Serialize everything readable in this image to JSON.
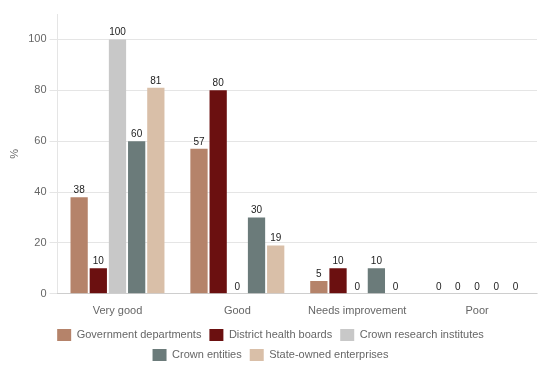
{
  "chart_data": {
    "type": "bar",
    "categories": [
      "Very good",
      "Good",
      "Needs improvement",
      "Poor"
    ],
    "series": [
      {
        "name": "Government departments",
        "color": "#b5836a",
        "values": [
          38,
          57,
          5,
          0
        ]
      },
      {
        "name": "District health boards",
        "color": "#6b1010",
        "values": [
          10,
          80,
          10,
          0
        ]
      },
      {
        "name": "Crown research institutes",
        "color": "#c8c8c8",
        "values": [
          100,
          0,
          0,
          0
        ]
      },
      {
        "name": "Crown entities",
        "color": "#6b7b7a",
        "values": [
          60,
          30,
          10,
          0
        ]
      },
      {
        "name": "State-owned enterprises",
        "color": "#d9bfa8",
        "values": [
          81,
          19,
          0,
          0
        ]
      }
    ],
    "ylabel": "%",
    "ylim": [
      0,
      110
    ],
    "yticks": [
      0,
      20,
      40,
      60,
      80,
      100
    ],
    "grid": true,
    "legend": "bottom",
    "data_labels": true
  }
}
